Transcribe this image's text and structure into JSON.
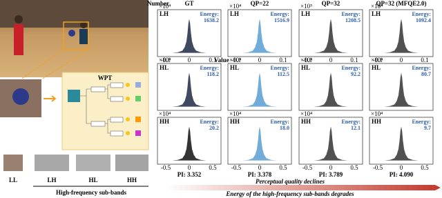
{
  "left_panel": {
    "wpt_title": "WPT",
    "subbands": [
      "LL",
      "LH",
      "HL",
      "HH"
    ],
    "caption": "High-frequency sub-bands"
  },
  "grid": {
    "columns": [
      "GT",
      "QP=22",
      "QP=32",
      "QP=32  (MFQE2.0)"
    ],
    "rows": [
      "LH",
      "HL",
      "HH"
    ],
    "y_axis_label": "Number",
    "x_axis_label": "Value",
    "energy_label": "Energy:",
    "energies": [
      [
        "1638.2",
        "1516.9",
        "1208.5",
        "1092.4"
      ],
      [
        "118.2",
        "112.5",
        "92.2",
        "80.7"
      ],
      [
        "20.2",
        "18.0",
        "12.1",
        "9.7"
      ]
    ],
    "scales": [
      [
        "×10⁴",
        "×10⁴",
        "×10⁵",
        "×10⁴"
      ],
      [
        "×10⁴",
        "×10⁴",
        "×10⁴",
        "×10⁴"
      ],
      [
        "×10⁴",
        "×10⁴",
        "×10⁴",
        "×10⁴"
      ]
    ],
    "top_x_ticks": [
      "-0.1",
      "0",
      "0.1"
    ],
    "bottom_x_ticks": [
      "-0.5",
      "0",
      "0.5"
    ],
    "pi": [
      "PI: 3.352",
      "PI: 3.378",
      "PI: 3.789",
      "PI: 4.090"
    ]
  },
  "footer": {
    "quality": "Perceptual quality declines",
    "energy": "Energy of the high-frequency sub-bands degrades"
  }
}
